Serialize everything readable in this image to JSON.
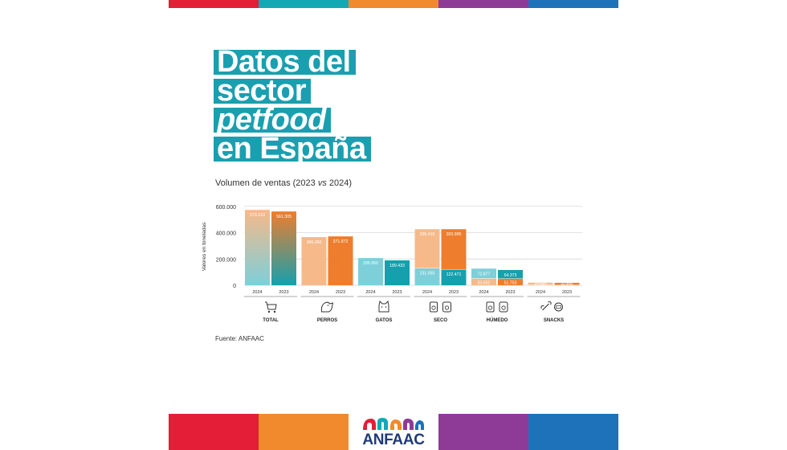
{
  "colors": {
    "strip_top": [
      "#e31e36",
      "#13a9b4",
      "#f08a2c",
      "#8e3b97",
      "#1d72ba"
    ],
    "strip_bottom": [
      "#e31e36",
      "#f08a2c",
      "#ffffff",
      "#8e3b97",
      "#1d72ba"
    ],
    "title_bg": "#1a9fb0",
    "color_2024_dark": "#7dcfda",
    "color_2024_light": "#f6b98a",
    "color_2023_dark": "#16a0ad",
    "color_2023_light": "#ee7d2e",
    "logo_text": "#1e3a7a"
  },
  "title": {
    "line1": "Datos del",
    "line2": "sector",
    "line3": "petfood",
    "line4": "en España"
  },
  "subtitle": {
    "prefix": "Volumen de ventas (2023 ",
    "vs": "vs",
    "suffix": " 2024)"
  },
  "source": "Fuente: ANFAAC",
  "logo": {
    "name": "ANFAAC"
  },
  "chart_data": {
    "type": "bar",
    "title": "Volumen de ventas (2023 vs 2024)",
    "ylabel": "Valores en toneladas",
    "ylim": [
      0,
      660000
    ],
    "yticks": [
      0,
      200000,
      400000,
      600000
    ],
    "ytick_labels": [
      "0",
      "200.000",
      "400.000",
      "600.000"
    ],
    "grid": true,
    "categories": [
      {
        "name": "TOTAL",
        "icon": "shopping-cart-icon",
        "bars": [
          {
            "year": "2024",
            "segments": [
              {
                "value": 573210,
                "label": "573.210",
                "style": "gradient"
              }
            ]
          },
          {
            "year": "2023",
            "segments": [
              {
                "value": 561305,
                "label": "561.305",
                "style": "gradient"
              }
            ]
          }
        ]
      },
      {
        "name": "PERROS",
        "icon": "dog-icon",
        "bars": [
          {
            "year": "2024",
            "segments": [
              {
                "value": 366260,
                "label": "366.260",
                "style": "light"
              }
            ]
          },
          {
            "year": "2023",
            "segments": [
              {
                "value": 371872,
                "label": "371.872",
                "style": "light"
              }
            ]
          }
        ]
      },
      {
        "name": "GATOS",
        "icon": "cat-icon",
        "bars": [
          {
            "year": "2024",
            "segments": [
              {
                "value": 206950,
                "label": "206.950",
                "style": "dark"
              }
            ]
          },
          {
            "year": "2023",
            "segments": [
              {
                "value": 189433,
                "label": "189.433",
                "style": "dark"
              }
            ]
          }
        ]
      },
      {
        "name": "SECO",
        "icon": "dry-food-bag-icon",
        "bars": [
          {
            "year": "2024",
            "segments": [
              {
                "value": 131055,
                "label": "131.055",
                "style": "dark"
              },
              {
                "value": 295416,
                "label": "295.416",
                "style": "light"
              }
            ]
          },
          {
            "year": "2023",
            "segments": [
              {
                "value": 122471,
                "label": "122.471",
                "style": "dark"
              },
              {
                "value": 303995,
                "label": "303.995",
                "style": "light"
              }
            ]
          }
        ]
      },
      {
        "name": "HÚMEDO",
        "icon": "wet-food-can-icon",
        "bars": [
          {
            "year": "2024",
            "segments": [
              {
                "value": 53652,
                "label": "53.652",
                "style": "light"
              },
              {
                "value": 72877,
                "label": "72.877",
                "style": "dark"
              }
            ]
          },
          {
            "year": "2023",
            "segments": [
              {
                "value": 51753,
                "label": "51.753",
                "style": "light"
              },
              {
                "value": 64373,
                "label": "64.373",
                "style": "dark"
              }
            ]
          }
        ]
      },
      {
        "name": "SNACKS",
        "icon": "bone-icon",
        "bars": [
          {
            "year": "2024",
            "segments": [
              {
                "value": 3018,
                "label": "3.018",
                "style": "dark"
              },
              {
                "value": 17012,
                "label": "17.012",
                "style": "light"
              }
            ]
          },
          {
            "year": "2023",
            "segments": [
              {
                "value": 2589,
                "label": "2.589",
                "style": "dark"
              },
              {
                "value": 16124,
                "label": "16.124",
                "style": "light"
              }
            ]
          }
        ]
      }
    ]
  }
}
